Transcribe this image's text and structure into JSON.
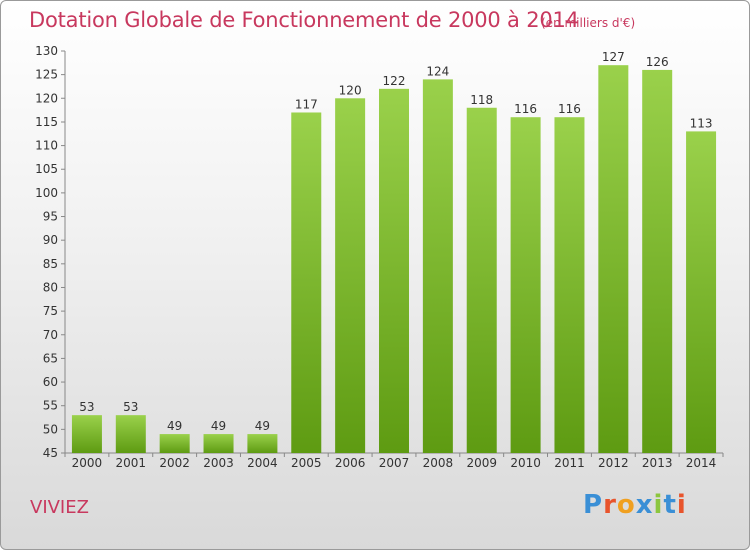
{
  "title": "Dotation Globale de Fonctionnement de 2000 à 2014",
  "subtitle": "(en milliers d'€)",
  "commune": "VIVIEZ",
  "logo": "Proxiti",
  "colors": {
    "text_accent": "#c8385e",
    "bar_light": "#9ad14b",
    "bar_dark": "#5e9b12",
    "logo_letters": [
      "#3a8fd6",
      "#e8542c",
      "#f0a020",
      "#3a8fd6",
      "#8cc63e",
      "#3a8fd6",
      "#e8542c"
    ]
  },
  "chart_data": {
    "type": "bar",
    "categories": [
      "2000",
      "2001",
      "2002",
      "2003",
      "2004",
      "2005",
      "2006",
      "2007",
      "2008",
      "2009",
      "2010",
      "2011",
      "2012",
      "2013",
      "2014"
    ],
    "values": [
      53,
      53,
      49,
      49,
      49,
      117,
      120,
      122,
      124,
      118,
      116,
      116,
      127,
      126,
      113
    ],
    "title": "Dotation Globale de Fonctionnement de 2000 à 2014",
    "subtitle": "(en milliers d'€)",
    "xlabel": "",
    "ylabel": "",
    "ylim": [
      45,
      130
    ],
    "yticks": [
      45,
      50,
      55,
      60,
      65,
      70,
      75,
      80,
      85,
      90,
      95,
      100,
      105,
      110,
      115,
      120,
      125,
      130
    ],
    "grid": false,
    "data_labels": true
  }
}
